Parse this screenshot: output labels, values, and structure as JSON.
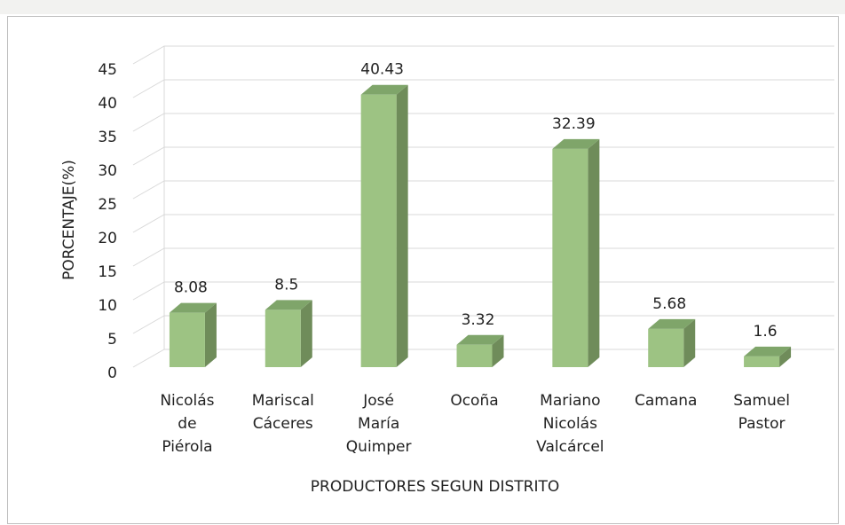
{
  "chart_data": {
    "type": "bar",
    "categories": [
      "Nicolás de Piérola",
      "Mariscal Cáceres",
      "José María Quimper",
      "Ocoña",
      "Mariano Nicolás Valcárcel",
      "Camana",
      "Samuel Pastor"
    ],
    "values": [
      8.08,
      8.5,
      40.43,
      3.32,
      32.39,
      5.68,
      1.6
    ],
    "color": "#9dc383",
    "ylim": [
      0,
      45
    ],
    "yticks": [
      0,
      5,
      10,
      15,
      20,
      25,
      30,
      35,
      40,
      45
    ],
    "grid": true,
    "x_label": "PRODUCTORES SEGUN DISTRITO",
    "y_label": "PORCENTAJE(%)"
  }
}
